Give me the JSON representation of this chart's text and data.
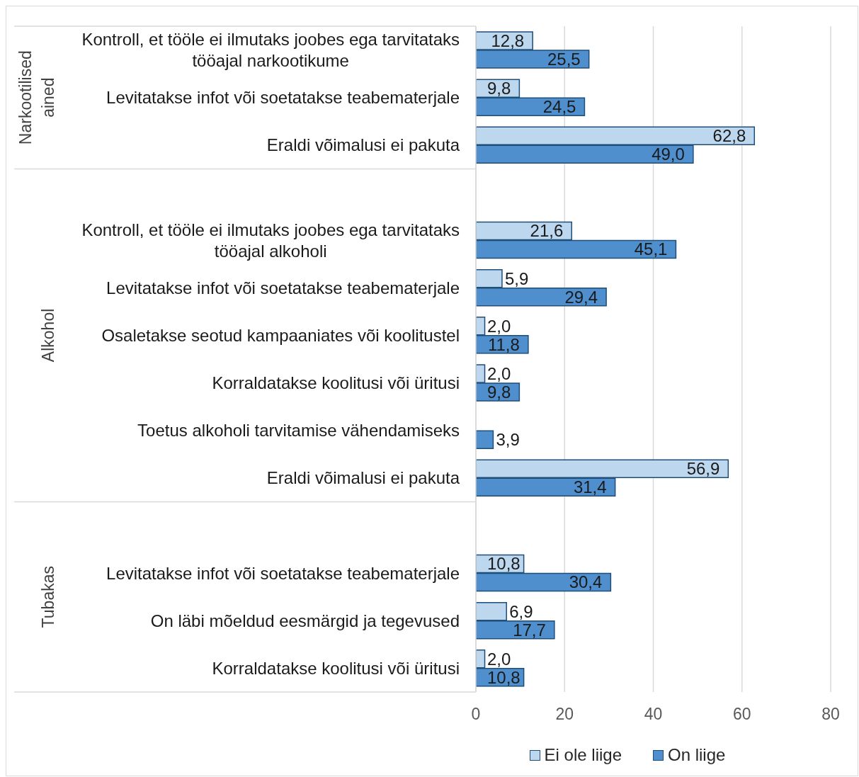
{
  "chart_data": {
    "type": "bar",
    "orientation": "horizontal",
    "categories": [
      "Kontroll, et tööle ei ilmutaks joobes ega tarvitataks tööajal narkootikume",
      "Levitatakse infot või soetatakse teabematerjale",
      "Eraldi võimalusi ei pakuta",
      null,
      "Kontroll, et tööle ei ilmutaks joobes ega tarvitataks tööajal alkoholi",
      "Levitatakse infot või soetatakse teabematerjale",
      "Osaletakse seotud kampaaniates või koolitustel",
      "Korraldatakse koolitusi või üritusi",
      "Toetus alkoholi tarvitamise vähendamiseks",
      "Eraldi võimalusi ei pakuta",
      null,
      "Levitatakse infot või soetatakse teabematerjale",
      "On läbi mõeldud eesmärgid ja tegevused",
      "Korraldatakse koolitusi või üritusi"
    ],
    "series": [
      {
        "name": "Ei ole liige",
        "color": "#bdd7ee",
        "values": [
          12.8,
          9.8,
          62.8,
          null,
          21.6,
          5.9,
          2.0,
          2.0,
          null,
          56.9,
          null,
          10.8,
          6.9,
          2.0
        ],
        "value_labels": [
          "12,8",
          "9,8",
          "62,8",
          null,
          "21,6",
          "5,9",
          "2,0",
          "2,0",
          null,
          "56,9",
          null,
          "10,8",
          "6,9",
          "2,0"
        ]
      },
      {
        "name": "On liige",
        "color": "#4f8fcd",
        "values": [
          25.5,
          24.5,
          49.0,
          null,
          45.1,
          29.4,
          11.8,
          9.8,
          3.9,
          31.4,
          null,
          30.4,
          17.7,
          10.8
        ],
        "value_labels": [
          "25,5",
          "24,5",
          "49,0",
          null,
          "45,1",
          "29,4",
          "11,8",
          "9,8",
          "3,9",
          "31,4",
          null,
          "30,4",
          "17,7",
          "10,8"
        ]
      }
    ],
    "xlim": [
      0,
      80
    ],
    "xticks": [
      0,
      20,
      40,
      60,
      80
    ],
    "grid": "x",
    "legend": "bottom",
    "annotations": [
      "Narkootilised ained",
      "Alkohol",
      "Tubakas"
    ]
  }
}
